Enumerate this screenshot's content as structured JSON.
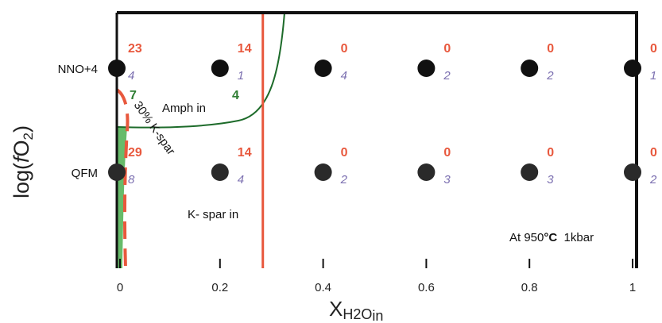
{
  "chart_data": {
    "type": "scatter",
    "title": "",
    "xlabel_main": "X",
    "xlabel_sub": "H2O",
    "xlabel_subsub": "in",
    "ylabel_prefix": "log(",
    "ylabel_italic": "f",
    "ylabel_main": "O",
    "ylabel_sub": "2",
    "ylabel_suffix": ")",
    "xlim": [
      0,
      1
    ],
    "xticks": [
      {
        "value": 0,
        "label": "0"
      },
      {
        "value": 0.2,
        "label": "0.2"
      },
      {
        "value": 0.4,
        "label": "0.4"
      },
      {
        "value": 0.6,
        "label": "0.6"
      },
      {
        "value": 0.8,
        "label": "0.8"
      },
      {
        "value": 1,
        "label": "1"
      }
    ],
    "yticks": [
      {
        "level": "NNO+4",
        "label": "NNO+4"
      },
      {
        "level": "QFM",
        "label": "QFM"
      }
    ],
    "points": [
      {
        "x": 0,
        "level": "NNO+4",
        "count": "23",
        "index": "4"
      },
      {
        "x": 0.2,
        "level": "NNO+4",
        "count": "14",
        "index": "1"
      },
      {
        "x": 0.4,
        "level": "NNO+4",
        "count": "0",
        "index": "4"
      },
      {
        "x": 0.6,
        "level": "NNO+4",
        "count": "0",
        "index": "2"
      },
      {
        "x": 0.8,
        "level": "NNO+4",
        "count": "0",
        "index": "2"
      },
      {
        "x": 1,
        "level": "NNO+4",
        "count": "0",
        "index": "1"
      },
      {
        "x": 0,
        "level": "QFM",
        "count": "29",
        "index": "8"
      },
      {
        "x": 0.2,
        "level": "QFM",
        "count": "14",
        "index": "4"
      },
      {
        "x": 0.4,
        "level": "QFM",
        "count": "0",
        "index": "2"
      },
      {
        "x": 0.6,
        "level": "QFM",
        "count": "0",
        "index": "3"
      },
      {
        "x": 0.8,
        "level": "QFM",
        "count": "0",
        "index": "3"
      },
      {
        "x": 1,
        "level": "QFM",
        "count": "0",
        "index": "2"
      }
    ],
    "extra_labels": [
      {
        "text": "7",
        "color": "#2e7d32"
      },
      {
        "text": "4",
        "color": "#2e7d32"
      }
    ],
    "annotations": {
      "amph_in": "Amph in",
      "kspar_in": "K- spar in",
      "kspar_30": "30% K-spar",
      "conditions_prefix": "At 950",
      "conditions_degree": "°C",
      "conditions_suffix": "  1kbar"
    },
    "boundaries": {
      "kspar_in_x": 0.28
    },
    "colors": {
      "count": "#e8583d",
      "index": "#7b6fb0",
      "amph_line": "#1d6b2a",
      "kspar_line": "#e8583d",
      "green_fill": "#4caf50",
      "point": "#111111"
    }
  }
}
